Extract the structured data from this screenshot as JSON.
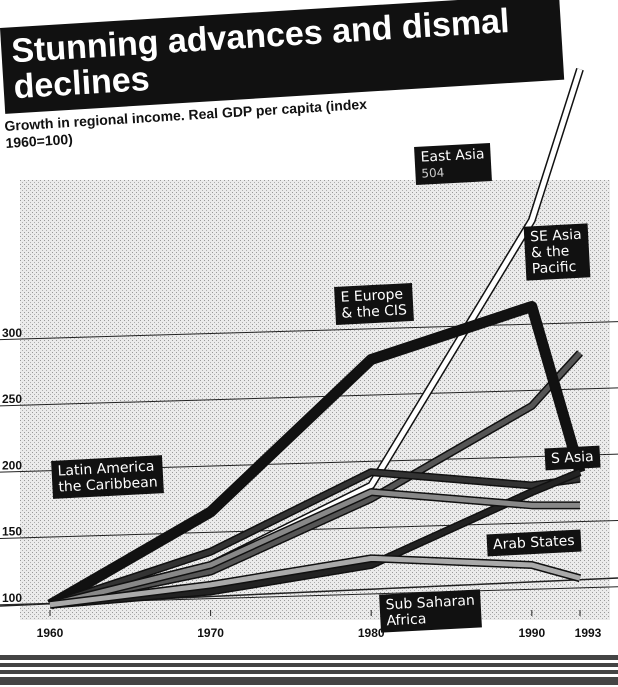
{
  "chart_data": {
    "type": "line",
    "title": "Stunning advances and dismal declines",
    "subtitle": "Growth in regional income. Real GDP per capita (index 1960=100)",
    "x": [
      1960,
      1970,
      1980,
      1990,
      1993
    ],
    "xlim": [
      1960,
      1993
    ],
    "xticks": [
      1960,
      1970,
      1980,
      1990,
      1993
    ],
    "ylim": [
      90,
      520
    ],
    "yticks": [
      100,
      150,
      200,
      250,
      300
    ],
    "grid": true,
    "series": [
      {
        "name": "East Asia",
        "color": "#ffffff",
        "values": [
          100,
          130,
          190,
          390,
          504
        ]
      },
      {
        "name": "SE Asia\n& the\nPacific",
        "color": "#555555",
        "values": [
          100,
          125,
          180,
          250,
          290
        ]
      },
      {
        "name": "E Europe\n& the CIS",
        "color": "#111111",
        "values": [
          100,
          170,
          285,
          325,
          200
        ]
      },
      {
        "name": "Latin America\nthe Caribbean",
        "color": "#333333",
        "values": [
          100,
          140,
          200,
          190,
          195
        ]
      },
      {
        "name": "S Asia",
        "color": "#222222",
        "values": [
          100,
          110,
          130,
          185,
          200
        ]
      },
      {
        "name": "Arab States",
        "color": "#888888",
        "values": [
          100,
          130,
          185,
          175,
          175
        ]
      },
      {
        "name": "Sub Saharan\nAfrica",
        "color": "#aaaaaa",
        "values": [
          100,
          115,
          135,
          130,
          120
        ]
      }
    ]
  }
}
